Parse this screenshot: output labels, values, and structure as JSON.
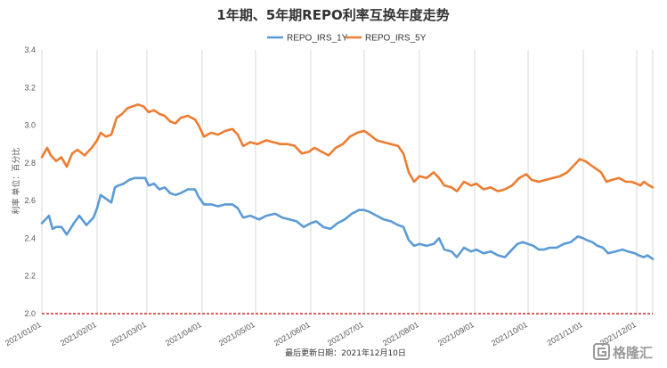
{
  "chart_data": {
    "type": "line",
    "title": "1年期、5年期REPO利率互换年度走势",
    "ylabel": "利率 单位：百分比",
    "xlabel": "",
    "footnote": "最后更新日期：2021年12月10日",
    "ylim": [
      2.0,
      3.4
    ],
    "yticks": [
      "2.0",
      "2.2",
      "2.4",
      "2.6",
      "2.8",
      "3.0",
      "3.2",
      "3.4"
    ],
    "xlim": [
      "2021/01/01",
      "2021/12/10"
    ],
    "xticks": [
      "2021/01/01",
      "2021/02/01",
      "2021/03/01",
      "2021/04/01",
      "2021/05/01",
      "2021/06/01",
      "2021/07/01",
      "2021/08/01",
      "2021/09/01",
      "2021/10/01",
      "2021/11/01",
      "2021/12/01"
    ],
    "grid": "vertical",
    "legend": "top-center",
    "reference_line": {
      "y": 2.0,
      "color": "#c00000",
      "style": "dashed"
    },
    "series": [
      {
        "name": "REPO_IRS_1Y",
        "color": "#5b9bd5",
        "points": [
          [
            "2021-01-01",
            2.48
          ],
          [
            "2021-01-05",
            2.52
          ],
          [
            "2021-01-07",
            2.45
          ],
          [
            "2021-01-09",
            2.46
          ],
          [
            "2021-01-12",
            2.46
          ],
          [
            "2021-01-15",
            2.42
          ],
          [
            "2021-01-19",
            2.48
          ],
          [
            "2021-01-22",
            2.52
          ],
          [
            "2021-01-26",
            2.47
          ],
          [
            "2021-01-30",
            2.51
          ],
          [
            "2021-02-01",
            2.56
          ],
          [
            "2021-02-03",
            2.63
          ],
          [
            "2021-02-06",
            2.61
          ],
          [
            "2021-02-09",
            2.59
          ],
          [
            "2021-02-11",
            2.67
          ],
          [
            "2021-02-13",
            2.68
          ],
          [
            "2021-02-16",
            2.69
          ],
          [
            "2021-02-19",
            2.71
          ],
          [
            "2021-02-22",
            2.72
          ],
          [
            "2021-02-25",
            2.72
          ],
          [
            "2021-02-28",
            2.72
          ],
          [
            "2021-03-02",
            2.68
          ],
          [
            "2021-03-05",
            2.69
          ],
          [
            "2021-03-08",
            2.66
          ],
          [
            "2021-03-11",
            2.67
          ],
          [
            "2021-03-14",
            2.64
          ],
          [
            "2021-03-17",
            2.63
          ],
          [
            "2021-03-20",
            2.64
          ],
          [
            "2021-03-24",
            2.66
          ],
          [
            "2021-03-28",
            2.66
          ],
          [
            "2021-03-30",
            2.62
          ],
          [
            "2021-04-02",
            2.58
          ],
          [
            "2021-04-06",
            2.58
          ],
          [
            "2021-04-10",
            2.57
          ],
          [
            "2021-04-14",
            2.58
          ],
          [
            "2021-04-18",
            2.58
          ],
          [
            "2021-04-21",
            2.56
          ],
          [
            "2021-04-24",
            2.51
          ],
          [
            "2021-04-28",
            2.52
          ],
          [
            "2021-05-03",
            2.5
          ],
          [
            "2021-05-07",
            2.52
          ],
          [
            "2021-05-12",
            2.53
          ],
          [
            "2021-05-16",
            2.51
          ],
          [
            "2021-05-20",
            2.5
          ],
          [
            "2021-05-24",
            2.49
          ],
          [
            "2021-05-28",
            2.46
          ],
          [
            "2021-06-01",
            2.48
          ],
          [
            "2021-06-04",
            2.49
          ],
          [
            "2021-06-08",
            2.46
          ],
          [
            "2021-06-12",
            2.45
          ],
          [
            "2021-06-16",
            2.48
          ],
          [
            "2021-06-20",
            2.5
          ],
          [
            "2021-06-24",
            2.53
          ],
          [
            "2021-06-28",
            2.55
          ],
          [
            "2021-07-01",
            2.55
          ],
          [
            "2021-07-04",
            2.54
          ],
          [
            "2021-07-08",
            2.52
          ],
          [
            "2021-07-12",
            2.5
          ],
          [
            "2021-07-16",
            2.49
          ],
          [
            "2021-07-20",
            2.47
          ],
          [
            "2021-07-23",
            2.46
          ],
          [
            "2021-07-26",
            2.39
          ],
          [
            "2021-07-29",
            2.36
          ],
          [
            "2021-08-01",
            2.37
          ],
          [
            "2021-08-05",
            2.36
          ],
          [
            "2021-08-09",
            2.37
          ],
          [
            "2021-08-12",
            2.4
          ],
          [
            "2021-08-15",
            2.34
          ],
          [
            "2021-08-19",
            2.33
          ],
          [
            "2021-08-22",
            2.3
          ],
          [
            "2021-08-26",
            2.35
          ],
          [
            "2021-08-30",
            2.33
          ],
          [
            "2021-09-02",
            2.34
          ],
          [
            "2021-09-06",
            2.32
          ],
          [
            "2021-09-10",
            2.33
          ],
          [
            "2021-09-14",
            2.31
          ],
          [
            "2021-09-18",
            2.3
          ],
          [
            "2021-09-21",
            2.33
          ],
          [
            "2021-09-25",
            2.37
          ],
          [
            "2021-09-28",
            2.38
          ],
          [
            "2021-10-01",
            2.37
          ],
          [
            "2021-10-04",
            2.36
          ],
          [
            "2021-10-07",
            2.34
          ],
          [
            "2021-10-10",
            2.34
          ],
          [
            "2021-10-13",
            2.35
          ],
          [
            "2021-10-17",
            2.35
          ],
          [
            "2021-10-21",
            2.37
          ],
          [
            "2021-10-25",
            2.38
          ],
          [
            "2021-10-29",
            2.41
          ],
          [
            "2021-11-01",
            2.4
          ],
          [
            "2021-11-03",
            2.39
          ],
          [
            "2021-11-06",
            2.38
          ],
          [
            "2021-11-09",
            2.36
          ],
          [
            "2021-11-12",
            2.35
          ],
          [
            "2021-11-15",
            2.32
          ],
          [
            "2021-11-19",
            2.33
          ],
          [
            "2021-11-23",
            2.34
          ],
          [
            "2021-11-26",
            2.33
          ],
          [
            "2021-11-30",
            2.32
          ],
          [
            "2021-12-02",
            2.31
          ],
          [
            "2021-12-05",
            2.3
          ],
          [
            "2021-12-07",
            2.31
          ],
          [
            "2021-12-10",
            2.29
          ]
        ]
      },
      {
        "name": "REPO_IRS_5Y",
        "color": "#ed7d31",
        "points": [
          [
            "2021-01-01",
            2.83
          ],
          [
            "2021-01-04",
            2.88
          ],
          [
            "2021-01-06",
            2.84
          ],
          [
            "2021-01-09",
            2.81
          ],
          [
            "2021-01-12",
            2.83
          ],
          [
            "2021-01-15",
            2.78
          ],
          [
            "2021-01-18",
            2.85
          ],
          [
            "2021-01-21",
            2.87
          ],
          [
            "2021-01-25",
            2.84
          ],
          [
            "2021-01-29",
            2.88
          ],
          [
            "2021-02-01",
            2.92
          ],
          [
            "2021-02-03",
            2.96
          ],
          [
            "2021-02-06",
            2.94
          ],
          [
            "2021-02-09",
            2.95
          ],
          [
            "2021-02-12",
            3.04
          ],
          [
            "2021-02-15",
            3.06
          ],
          [
            "2021-02-18",
            3.09
          ],
          [
            "2021-02-21",
            3.1
          ],
          [
            "2021-02-24",
            3.11
          ],
          [
            "2021-02-27",
            3.1
          ],
          [
            "2021-03-02",
            3.07
          ],
          [
            "2021-03-05",
            3.08
          ],
          [
            "2021-03-08",
            3.06
          ],
          [
            "2021-03-11",
            3.05
          ],
          [
            "2021-03-14",
            3.02
          ],
          [
            "2021-03-17",
            3.01
          ],
          [
            "2021-03-20",
            3.04
          ],
          [
            "2021-03-24",
            3.05
          ],
          [
            "2021-03-28",
            3.03
          ],
          [
            "2021-03-30",
            3.0
          ],
          [
            "2021-04-02",
            2.94
          ],
          [
            "2021-04-06",
            2.96
          ],
          [
            "2021-04-10",
            2.95
          ],
          [
            "2021-04-14",
            2.97
          ],
          [
            "2021-04-18",
            2.98
          ],
          [
            "2021-04-21",
            2.95
          ],
          [
            "2021-04-24",
            2.89
          ],
          [
            "2021-04-28",
            2.91
          ],
          [
            "2021-05-02",
            2.9
          ],
          [
            "2021-05-07",
            2.92
          ],
          [
            "2021-05-11",
            2.91
          ],
          [
            "2021-05-15",
            2.9
          ],
          [
            "2021-05-19",
            2.9
          ],
          [
            "2021-05-23",
            2.89
          ],
          [
            "2021-05-27",
            2.85
          ],
          [
            "2021-05-31",
            2.86
          ],
          [
            "2021-06-03",
            2.88
          ],
          [
            "2021-06-07",
            2.86
          ],
          [
            "2021-06-11",
            2.84
          ],
          [
            "2021-06-15",
            2.88
          ],
          [
            "2021-06-19",
            2.9
          ],
          [
            "2021-06-23",
            2.94
          ],
          [
            "2021-06-27",
            2.96
          ],
          [
            "2021-07-01",
            2.97
          ],
          [
            "2021-07-04",
            2.95
          ],
          [
            "2021-07-08",
            2.92
          ],
          [
            "2021-07-12",
            2.91
          ],
          [
            "2021-07-16",
            2.9
          ],
          [
            "2021-07-20",
            2.89
          ],
          [
            "2021-07-23",
            2.85
          ],
          [
            "2021-07-26",
            2.75
          ],
          [
            "2021-07-29",
            2.7
          ],
          [
            "2021-08-01",
            2.73
          ],
          [
            "2021-08-05",
            2.72
          ],
          [
            "2021-08-09",
            2.75
          ],
          [
            "2021-08-12",
            2.72
          ],
          [
            "2021-08-15",
            2.68
          ],
          [
            "2021-08-19",
            2.67
          ],
          [
            "2021-08-22",
            2.65
          ],
          [
            "2021-08-26",
            2.7
          ],
          [
            "2021-08-30",
            2.68
          ],
          [
            "2021-09-02",
            2.69
          ],
          [
            "2021-09-06",
            2.66
          ],
          [
            "2021-09-10",
            2.67
          ],
          [
            "2021-09-14",
            2.65
          ],
          [
            "2021-09-18",
            2.66
          ],
          [
            "2021-09-22",
            2.68
          ],
          [
            "2021-09-26",
            2.72
          ],
          [
            "2021-09-30",
            2.74
          ],
          [
            "2021-10-03",
            2.71
          ],
          [
            "2021-10-07",
            2.7
          ],
          [
            "2021-10-11",
            2.71
          ],
          [
            "2021-10-15",
            2.72
          ],
          [
            "2021-10-19",
            2.73
          ],
          [
            "2021-10-23",
            2.75
          ],
          [
            "2021-10-27",
            2.79
          ],
          [
            "2021-10-30",
            2.82
          ],
          [
            "2021-11-02",
            2.81
          ],
          [
            "2021-11-05",
            2.79
          ],
          [
            "2021-11-08",
            2.77
          ],
          [
            "2021-11-11",
            2.75
          ],
          [
            "2021-11-14",
            2.7
          ],
          [
            "2021-11-17",
            2.71
          ],
          [
            "2021-11-21",
            2.72
          ],
          [
            "2021-11-25",
            2.7
          ],
          [
            "2021-11-28",
            2.7
          ],
          [
            "2021-12-01",
            2.69
          ],
          [
            "2021-12-03",
            2.68
          ],
          [
            "2021-12-05",
            2.7
          ],
          [
            "2021-12-08",
            2.68
          ],
          [
            "2021-12-10",
            2.67
          ]
        ]
      }
    ]
  },
  "watermark": {
    "text": "格隆汇",
    "icon": "logo-g-icon",
    "color": "#9a9a9a"
  }
}
